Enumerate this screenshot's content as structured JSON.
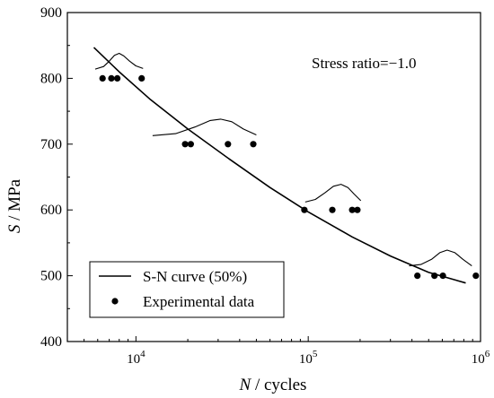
{
  "chart_data": {
    "type": "scatter",
    "title": "",
    "annotation": "Stress ratio=−1.0",
    "xlabel": {
      "var": "N",
      "unit": " / cycles"
    },
    "ylabel": {
      "var": "S",
      "unit": " / MPa"
    },
    "x_scale": "log",
    "xlim": [
      4000,
      1000000
    ],
    "ylim": [
      400,
      900
    ],
    "yticks": [
      400,
      500,
      600,
      700,
      800,
      900
    ],
    "xticks": [
      {
        "value": 10000,
        "base": "10",
        "exp": "4"
      },
      {
        "value": 100000,
        "base": "10",
        "exp": "5"
      },
      {
        "value": 1000000,
        "base": "10",
        "exp": "6"
      }
    ],
    "grid": false,
    "legend_position": "bottom-left",
    "series": [
      {
        "name": "S-N curve (50%)",
        "kind": "line",
        "color": "#000000",
        "x": [
          5700,
          8000,
          12000,
          20000,
          35000,
          60000,
          100000,
          180000,
          300000,
          500000,
          820000
        ],
        "y": [
          847,
          810,
          769,
          723,
          677,
          634,
          597,
          559,
          530,
          505,
          489
        ]
      },
      {
        "name": "Experimental data",
        "kind": "scatter",
        "color": "#000000",
        "x": [
          6400,
          7200,
          7800,
          10800,
          19300,
          20800,
          34200,
          48000,
          95000,
          138000,
          180000,
          193000,
          430000,
          540000,
          605000,
          940000
        ],
        "y": [
          800,
          800,
          800,
          800,
          700,
          700,
          700,
          700,
          600,
          600,
          600,
          600,
          500,
          500,
          500,
          500
        ]
      }
    ],
    "distributions": [
      {
        "color": "#000000",
        "x": [
          5800,
          6500,
          7000,
          7500,
          8000,
          8500,
          9200,
          10000,
          11000
        ],
        "y": [
          814,
          818,
          826,
          835,
          838,
          834,
          826,
          819,
          815
        ]
      },
      {
        "color": "#000000",
        "x": [
          12500,
          17000,
          22000,
          27000,
          31000,
          36000,
          42000,
          50000
        ],
        "y": [
          713,
          716,
          726,
          736,
          738,
          734,
          723,
          714
        ]
      },
      {
        "color": "#000000",
        "x": [
          96000,
          110000,
          125000,
          140000,
          155000,
          170000,
          185000,
          202000
        ],
        "y": [
          612,
          616,
          626,
          636,
          639,
          634,
          624,
          614
        ]
      },
      {
        "color": "#000000",
        "x": [
          385000,
          450000,
          520000,
          580000,
          640000,
          710000,
          790000,
          890000
        ],
        "y": [
          515,
          517,
          525,
          535,
          539,
          535,
          525,
          515
        ]
      }
    ]
  }
}
